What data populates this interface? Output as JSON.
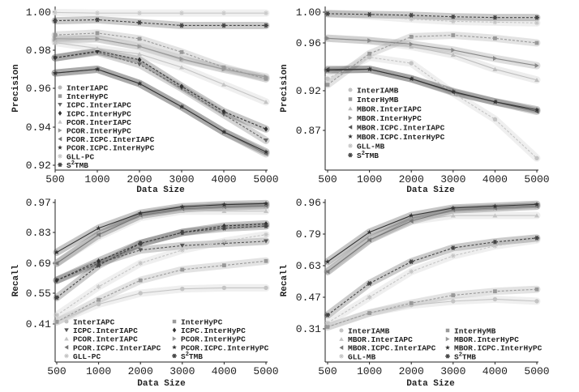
{
  "chart_data": [
    {
      "type": "line",
      "title": "",
      "xlabel": "Data Size",
      "ylabel": "Precision",
      "categories": [
        "500",
        "1000",
        "2000",
        "3000",
        "4000",
        "5000"
      ],
      "yticks": [
        "1.00",
        "0.98",
        "0.96",
        "0.94",
        "0.92"
      ],
      "ytick_values": [
        1.0,
        0.98,
        0.96,
        0.94,
        0.92
      ],
      "legend_placement": "lower-left",
      "legend_columns": 1,
      "series": [
        {
          "name": "InterIAPC",
          "marker": "●",
          "color": "#b8b8b8",
          "dashed": false,
          "values": [
            0.985,
            0.986,
            0.982,
            0.975,
            0.97,
            0.965
          ]
        },
        {
          "name": "InterHyPC",
          "marker": "■",
          "color": "#999999",
          "dashed": true,
          "values": [
            0.988,
            0.989,
            0.986,
            0.979,
            0.971,
            0.965
          ]
        },
        {
          "name": "ICPC.InterIAPC",
          "marker": "▼",
          "color": "#666666",
          "dashed": true,
          "values": [
            0.976,
            0.979,
            0.9725,
            0.96,
            0.9465,
            0.933
          ]
        },
        {
          "name": "ICPC.InterHyPC",
          "marker": "◆",
          "color": "#333333",
          "dashed": true,
          "values": [
            0.976,
            0.9795,
            0.975,
            0.961,
            0.948,
            0.939
          ]
        },
        {
          "name": "PCOR.InterIAPC",
          "marker": "▲",
          "color": "#c4c4c4",
          "dashed": false,
          "values": [
            0.984,
            0.981,
            0.978,
            0.971,
            0.962,
            0.953
          ]
        },
        {
          "name": "PCOR.InterHyPC",
          "marker": "▶",
          "color": "#999999",
          "dashed": false,
          "values": [
            0.986,
            0.986,
            0.982,
            0.9755,
            0.97,
            0.966
          ]
        },
        {
          "name": "PCOR.ICPC.InterIAPC",
          "marker": "◀",
          "color": "#777777",
          "dashed": false,
          "values": [
            0.968,
            0.97,
            0.9625,
            0.9505,
            0.9375,
            0.926
          ]
        },
        {
          "name": "PCOR.ICPC.InterHyPC",
          "marker": "★",
          "color": "#333333",
          "dashed": false,
          "values": [
            0.968,
            0.97,
            0.9625,
            0.9505,
            0.9375,
            0.927
          ]
        },
        {
          "name": "GLL-PC",
          "marker": "✳",
          "color": "#c8c8c8",
          "dashed": false,
          "values": [
            0.9998,
            0.9995,
            0.9995,
            0.9995,
            0.9995,
            0.9995
          ]
        },
        {
          "name": "S2TMB",
          "legend_base": "S",
          "legend_sup": "2",
          "legend_rest": "TMB",
          "marker": "✱",
          "color": "#444444",
          "dashed": true,
          "values": [
            0.9955,
            0.996,
            0.9945,
            0.993,
            0.993,
            0.993
          ]
        }
      ]
    },
    {
      "type": "line",
      "title": "",
      "xlabel": "Data Size",
      "ylabel": "Precision",
      "categories": [
        "500",
        "1000",
        "2000",
        "3000",
        "4000",
        "5000"
      ],
      "yticks": [
        "1.00",
        "0.96",
        "0.92",
        "0.87"
      ],
      "ytick_values": [
        1.0,
        0.96,
        0.92,
        0.87
      ],
      "legend_placement": "lower-left",
      "legend_columns": 1,
      "series": [
        {
          "name": "InterIAMB",
          "marker": "●",
          "color": "#c4c4c4",
          "dashed": true,
          "values": [
            0.93,
            0.948,
            0.943,
            0.917,
            0.884,
            0.835
          ]
        },
        {
          "name": "InterHyMB",
          "marker": "■",
          "color": "#999999",
          "dashed": true,
          "values": [
            0.925,
            0.951,
            0.968,
            0.97,
            0.966,
            0.96
          ]
        },
        {
          "name": "MBOR.InterIAPC",
          "marker": "▲",
          "color": "#bdbdbd",
          "dashed": false,
          "values": [
            0.966,
            0.963,
            0.957,
            0.95,
            0.938,
            0.929
          ]
        },
        {
          "name": "MBOR.InterHyPC",
          "marker": "▶",
          "color": "#888888",
          "dashed": false,
          "values": [
            0.966,
            0.963,
            0.959,
            0.954,
            0.947,
            0.941
          ]
        },
        {
          "name": "MBOR.ICPC.InterIAPC",
          "marker": "◀",
          "color": "#555555",
          "dashed": false,
          "values": [
            0.938,
            0.938,
            0.93,
            0.918,
            0.906,
            0.894
          ]
        },
        {
          "name": "MBOR.ICPC.InterHyPC",
          "marker": "★",
          "color": "#333333",
          "dashed": false,
          "values": [
            0.937,
            0.938,
            0.93,
            0.919,
            0.906,
            0.896
          ]
        },
        {
          "name": "GLL-MB",
          "marker": "✳",
          "color": "#c4c4c4",
          "dashed": true,
          "values": [
            0.998,
            0.995,
            0.991,
            0.988,
            0.987,
            0.986
          ]
        },
        {
          "name": "S2TMB",
          "legend_base": "S",
          "legend_sup": "2",
          "legend_rest": "TMB",
          "marker": "✱",
          "color": "#444444",
          "dashed": true,
          "values": [
            0.998,
            0.997,
            0.996,
            0.994,
            0.993,
            0.993
          ]
        }
      ]
    },
    {
      "type": "line",
      "title": "",
      "xlabel": "Data Size",
      "ylabel": "Recall",
      "categories": [
        "500",
        "1000",
        "2000",
        "3000",
        "4000",
        "5000"
      ],
      "yticks": [
        "0.97",
        "0.83",
        "0.69",
        "0.55",
        "0.41"
      ],
      "ytick_values": [
        0.97,
        0.83,
        0.69,
        0.55,
        0.41
      ],
      "legend_placement": "bottom",
      "legend_columns": 2,
      "series": [
        {
          "name": "InterIAPC",
          "marker": "●",
          "color": "#c4c4c4",
          "dashed": false,
          "values": [
            0.42,
            0.5,
            0.55,
            0.57,
            0.575,
            0.575
          ]
        },
        {
          "name": "InterHyPC",
          "marker": "■",
          "color": "#999999",
          "dashed": true,
          "values": [
            0.42,
            0.52,
            0.61,
            0.66,
            0.68,
            0.7
          ]
        },
        {
          "name": "ICPC.InterIAPC",
          "marker": "▼",
          "color": "#555555",
          "dashed": true,
          "values": [
            0.61,
            0.69,
            0.75,
            0.77,
            0.78,
            0.79
          ]
        },
        {
          "name": "ICPC.InterHyPC",
          "marker": "◆",
          "color": "#333333",
          "dashed": true,
          "values": [
            0.61,
            0.7,
            0.78,
            0.83,
            0.86,
            0.87
          ]
        },
        {
          "name": "PCOR.InterIAPC",
          "marker": "▲",
          "color": "#c4c4c4",
          "dashed": false,
          "values": [
            0.69,
            0.81,
            0.9,
            0.93,
            0.93,
            0.93
          ]
        },
        {
          "name": "PCOR.InterHyPC",
          "marker": "▶",
          "color": "#999999",
          "dashed": false,
          "values": [
            0.69,
            0.82,
            0.91,
            0.94,
            0.95,
            0.955
          ]
        },
        {
          "name": "PCOR.ICPC.InterIAPC",
          "marker": "◀",
          "color": "#777777",
          "dashed": false,
          "values": [
            0.69,
            0.82,
            0.91,
            0.94,
            0.95,
            0.955
          ]
        },
        {
          "name": "PCOR.ICPC.InterHyPC",
          "marker": "★",
          "color": "#333333",
          "dashed": false,
          "values": [
            0.74,
            0.85,
            0.92,
            0.95,
            0.96,
            0.965
          ]
        },
        {
          "name": "GLL-PC",
          "marker": "✳",
          "color": "#c4c4c4",
          "dashed": true,
          "values": [
            0.45,
            0.58,
            0.69,
            0.75,
            0.79,
            0.82
          ]
        },
        {
          "name": "S2TMB",
          "legend_base": "S",
          "legend_sup": "2",
          "legend_rest": "TMB",
          "marker": "✱",
          "color": "#444444",
          "dashed": true,
          "values": [
            0.53,
            0.68,
            0.78,
            0.83,
            0.85,
            0.86
          ]
        }
      ]
    },
    {
      "type": "line",
      "title": "",
      "xlabel": "Data Size",
      "ylabel": "Recall",
      "categories": [
        "500",
        "1000",
        "2000",
        "3000",
        "4000",
        "5000"
      ],
      "yticks": [
        "0.96",
        "0.79",
        "0.63",
        "0.47",
        "0.31"
      ],
      "ytick_values": [
        0.96,
        0.79,
        0.63,
        0.47,
        0.31
      ],
      "legend_placement": "bottom",
      "legend_columns": 2,
      "series": [
        {
          "name": "InterIAMB",
          "marker": "●",
          "color": "#c4c4c4",
          "dashed": false,
          "values": [
            0.32,
            0.39,
            0.43,
            0.45,
            0.46,
            0.45
          ]
        },
        {
          "name": "InterHyMB",
          "marker": "■",
          "color": "#999999",
          "dashed": true,
          "values": [
            0.32,
            0.39,
            0.44,
            0.48,
            0.5,
            0.51
          ]
        },
        {
          "name": "MBOR.InterIAPC",
          "marker": "▲",
          "color": "#c4c4c4",
          "dashed": false,
          "values": [
            0.61,
            0.77,
            0.86,
            0.89,
            0.89,
            0.89
          ]
        },
        {
          "name": "MBOR.InterHyPC",
          "marker": "▶",
          "color": "#999999",
          "dashed": false,
          "values": [
            0.6,
            0.76,
            0.87,
            0.92,
            0.93,
            0.94
          ]
        },
        {
          "name": "MBOR.ICPC.InterIAPC",
          "marker": "◀",
          "color": "#777777",
          "dashed": false,
          "values": [
            0.6,
            0.76,
            0.86,
            0.92,
            0.93,
            0.94
          ]
        },
        {
          "name": "MBOR.ICPC.InterHyPC",
          "marker": "★",
          "color": "#333333",
          "dashed": false,
          "values": [
            0.65,
            0.8,
            0.89,
            0.93,
            0.94,
            0.95
          ]
        },
        {
          "name": "GLL-MB",
          "marker": "✳",
          "color": "#c4c4c4",
          "dashed": true,
          "values": [
            0.34,
            0.47,
            0.6,
            0.68,
            0.73,
            0.76
          ]
        },
        {
          "name": "S2TMB",
          "legend_base": "S",
          "legend_sup": "2",
          "legend_rest": "TMB",
          "marker": "✱",
          "color": "#444444",
          "dashed": true,
          "values": [
            0.38,
            0.54,
            0.65,
            0.72,
            0.75,
            0.77
          ]
        }
      ]
    }
  ]
}
